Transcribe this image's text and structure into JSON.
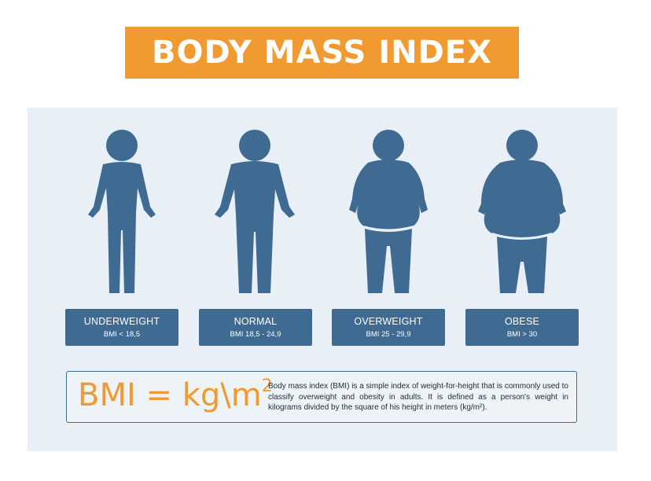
{
  "title": "BODY MASS INDEX",
  "colors": {
    "accent": "#f19a32",
    "figure": "#3f6a91",
    "panel": "#e8eff6"
  },
  "categories": [
    {
      "name": "UNDERWEIGHT",
      "range": "BMI < 18,5"
    },
    {
      "name": "NORMAL",
      "range": "BMI 18,5 - 24,9"
    },
    {
      "name": "OVERWEIGHT",
      "range": "BMI 25 - 29,9"
    },
    {
      "name": "OBESE",
      "range": "BMI > 30"
    }
  ],
  "formula": {
    "text": "BMI = kg\\m",
    "exponent": "2"
  },
  "description": "Body mass index (BMI) is a simple index of weight-for-height that is commonly used to classify overweight and obesity in adults. It is defined as a person's weight in kilograms divided by the square of his height in meters (kg/m²)."
}
